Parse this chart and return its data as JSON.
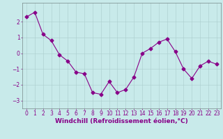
{
  "x": [
    0,
    1,
    2,
    3,
    4,
    5,
    6,
    7,
    8,
    9,
    10,
    11,
    12,
    13,
    14,
    15,
    16,
    17,
    18,
    19,
    20,
    21,
    22,
    23
  ],
  "y": [
    2.3,
    2.6,
    1.2,
    0.8,
    -0.1,
    -0.5,
    -1.2,
    -1.3,
    -2.5,
    -2.6,
    -1.8,
    -2.5,
    -2.3,
    -1.5,
    0.0,
    0.3,
    0.7,
    0.9,
    0.1,
    -1.0,
    -1.6,
    -0.8,
    -0.5,
    -0.7
  ],
  "line_color": "#880088",
  "marker": "D",
  "markersize": 2.5,
  "linewidth": 0.8,
  "xlabel": "Windchill (Refroidissement éolien,°C)",
  "ylim": [
    -3.5,
    3.2
  ],
  "xlim": [
    -0.5,
    23.5
  ],
  "yticks": [
    -3,
    -2,
    -1,
    0,
    1,
    2
  ],
  "xticks": [
    0,
    1,
    2,
    3,
    4,
    5,
    6,
    7,
    8,
    9,
    10,
    11,
    12,
    13,
    14,
    15,
    16,
    17,
    18,
    19,
    20,
    21,
    22,
    23
  ],
  "background_color": "#c8eaea",
  "grid_color": "#aacccc",
  "tick_fontsize": 5.5,
  "xlabel_fontsize": 6.5
}
